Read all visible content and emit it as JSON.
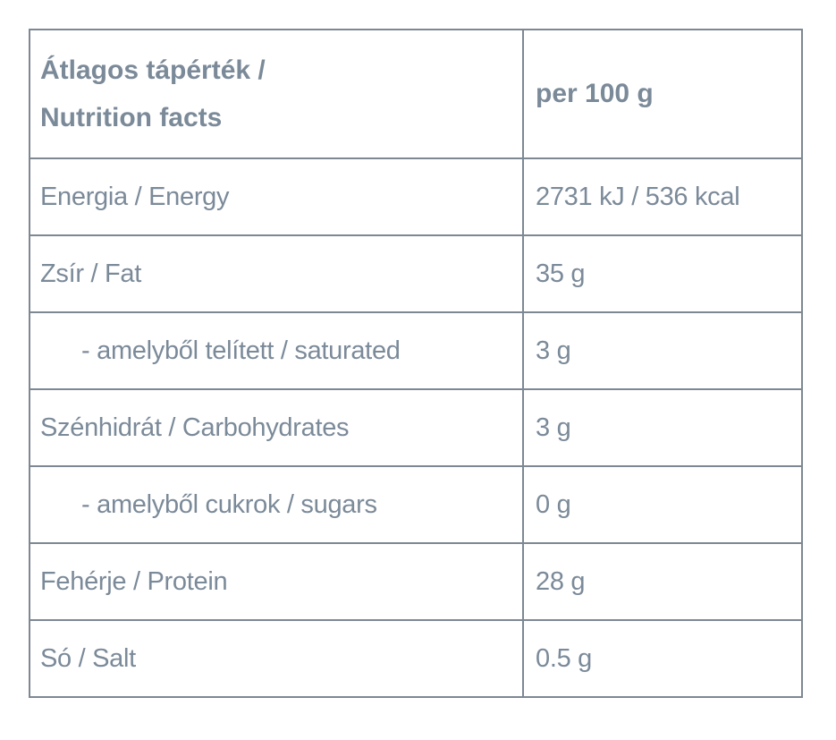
{
  "colors": {
    "text": "#7b8a99",
    "border": "#7e8893",
    "background": "#ffffff"
  },
  "table": {
    "header": {
      "label": "Átlagos tápérték /\nNutrition facts",
      "value": "per 100 g"
    },
    "rows": [
      {
        "label": "Energia / Energy",
        "value": "2731 kJ / 536 kcal",
        "indent": false
      },
      {
        "label": "Zsír / Fat",
        "value": "35 g",
        "indent": false
      },
      {
        "label": "- amelyből telített / saturated",
        "value": "3 g",
        "indent": true
      },
      {
        "label": "Szénhidrát / Carbohydrates",
        "value": "3 g",
        "indent": false
      },
      {
        "label": "- amelyből cukrok / sugars",
        "value": "0 g",
        "indent": true
      },
      {
        "label": "Fehérje / Protein",
        "value": "28 g",
        "indent": false
      },
      {
        "label": "Só / Salt",
        "value": "0.5 g",
        "indent": false
      }
    ]
  }
}
